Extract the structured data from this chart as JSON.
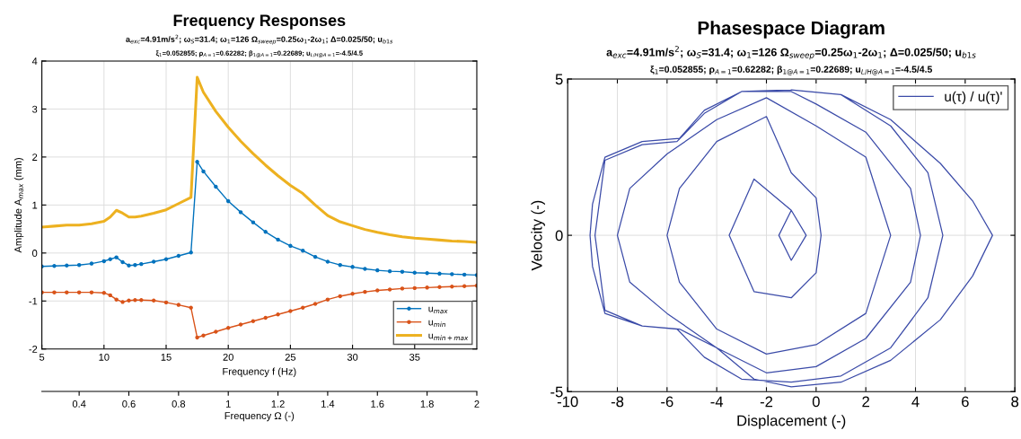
{
  "chart_data": [
    {
      "type": "line",
      "title": "Frequency Responses",
      "subtitle": "a$_{exc}$=4.91m/s$^{2}$; ω$_{S}$=31.4; ω$_{1}$=126 Ω$_{sweep}$=0.25ω$_{1}$-2ω$_{1}$; Δ=0.025/50; u$_{b1s}$",
      "annotations": [
        "ξ$_{1}$=0.052855; ρ$_{A=1}$=0.62282; β$_{1@A=1}$=0.22689; u$_{L/H@A=1}$=-4.5/4.5"
      ],
      "xlabel": "Frequency f (Hz)",
      "ylabel": "Amplitude A$_{max}$ (mm)",
      "x2label": "Frequency Ω (-)",
      "x": [
        5,
        6,
        7,
        8,
        9,
        10,
        10.5,
        11,
        11.5,
        12,
        12.5,
        13,
        14,
        15,
        16,
        17,
        17.5,
        18,
        19,
        20,
        21,
        22,
        23,
        24,
        25,
        26,
        27,
        28,
        29,
        30,
        31,
        32,
        33,
        34,
        35,
        36,
        37,
        38,
        39,
        40
      ],
      "series": [
        {
          "name": "u$_{max}$",
          "color": "#0072bd",
          "marker": "circle",
          "values": [
            -0.28,
            -0.27,
            -0.26,
            -0.25,
            -0.22,
            -0.17,
            -0.13,
            -0.09,
            -0.19,
            -0.26,
            -0.25,
            -0.23,
            -0.18,
            -0.13,
            -0.06,
            0.01,
            1.9,
            1.7,
            1.38,
            1.08,
            0.85,
            0.64,
            0.44,
            0.28,
            0.15,
            0.05,
            -0.08,
            -0.18,
            -0.25,
            -0.29,
            -0.33,
            -0.36,
            -0.38,
            -0.39,
            -0.41,
            -0.42,
            -0.43,
            -0.44,
            -0.45,
            -0.46
          ]
        },
        {
          "name": "u$_{min}$",
          "color": "#d95319",
          "marker": "circle",
          "values": [
            -0.82,
            -0.82,
            -0.82,
            -0.82,
            -0.82,
            -0.83,
            -0.88,
            -0.97,
            -1.02,
            -0.99,
            -0.98,
            -0.98,
            -0.99,
            -1.03,
            -1.08,
            -1.14,
            -1.76,
            -1.72,
            -1.64,
            -1.56,
            -1.49,
            -1.42,
            -1.35,
            -1.28,
            -1.21,
            -1.14,
            -1.06,
            -0.97,
            -0.9,
            -0.85,
            -0.81,
            -0.78,
            -0.76,
            -0.74,
            -0.73,
            -0.72,
            -0.71,
            -0.7,
            -0.69,
            -0.68
          ]
        },
        {
          "name": "u$_{min+max}$",
          "color": "#edb120",
          "marker": "none",
          "values": [
            0.54,
            0.56,
            0.58,
            0.58,
            0.61,
            0.66,
            0.75,
            0.89,
            0.83,
            0.75,
            0.75,
            0.77,
            0.83,
            0.9,
            1.03,
            1.16,
            3.66,
            3.35,
            2.95,
            2.62,
            2.33,
            2.07,
            1.83,
            1.61,
            1.41,
            1.24,
            1.0,
            0.78,
            0.65,
            0.57,
            0.49,
            0.43,
            0.38,
            0.34,
            0.31,
            0.29,
            0.27,
            0.25,
            0.24,
            0.22
          ]
        }
      ],
      "xlim": [
        5,
        40
      ],
      "xticks": [
        5,
        10,
        15,
        20,
        25,
        30,
        35
      ],
      "ylim": [
        -2,
        4
      ],
      "yticks": [
        -2,
        -1,
        0,
        1,
        2,
        3,
        4
      ],
      "x2lim": [
        0.25,
        2
      ],
      "x2ticks": [
        0.4,
        0.6,
        0.8,
        1,
        1.2,
        1.4,
        1.6,
        1.8,
        2
      ],
      "grid": true,
      "legend": "bottom right"
    },
    {
      "type": "line",
      "title": "Phasespace Diagram",
      "subtitle": "a$_{exc}$=4.91m/s$^{2}$; ω$_{S}$=31.4; ω$_{1}$=126 Ω$_{sweep}$=0.25ω$_{1}$-2ω$_{1}$; Δ=0.025/50; u$_{b1s}$",
      "annotations": [
        "ξ$_{1}$=0.052855; ρ$_{A=1}$=0.62282; β$_{1@A=1}$=0.22689; u$_{L/H@A=1}$=-4.5/4.5"
      ],
      "xlabel": "Displacement (-)",
      "ylabel": "Velocity (-)",
      "series": [
        {
          "name": "u(τ) / u(τ)'",
          "color": "#3b4ba8",
          "marker": "none",
          "x": [
            -1,
            1,
            3,
            5,
            6.3,
            7.1,
            6.3,
            5,
            3,
            1,
            -1,
            -2.5,
            -4,
            -5.5,
            -7,
            -8.5,
            -9,
            -9.1,
            -9,
            -8.5,
            -7,
            -5.5,
            -4.5,
            -3,
            -1,
            1,
            3,
            4.5,
            5.1,
            4.5,
            3,
            1,
            -1,
            -3,
            -4.5,
            -5.6,
            -7,
            -8.5,
            -8.9,
            -8.5,
            -7,
            -5.6,
            -4.5,
            -3,
            -1,
            0,
            2,
            3.8,
            4.2,
            3.8,
            2,
            0,
            -2,
            -4,
            -6,
            -7.5,
            -8,
            -7.5,
            -6,
            -4,
            -2,
            0,
            2,
            3,
            2,
            0,
            -2,
            -4,
            -5.5,
            -6,
            -5.5,
            -4,
            -2,
            -1,
            0,
            0.2,
            0,
            -1,
            -2.5,
            -3.5,
            -2.5,
            -1,
            -0.4,
            -1,
            -1.5,
            -1
          ],
          "values": [
            4.65,
            4.5,
            3.7,
            2.3,
            1.1,
            0,
            -1.3,
            -2.7,
            -4.0,
            -4.7,
            -4.85,
            -4.6,
            -3.6,
            -3.0,
            -2.9,
            -2.5,
            -1,
            0,
            1,
            2.5,
            3,
            3.1,
            4,
            4.6,
            4.65,
            4.5,
            3.5,
            2,
            0,
            -2,
            -3.6,
            -4.5,
            -4.7,
            -4.6,
            -3.9,
            -3,
            -2.9,
            -2.4,
            0,
            2.4,
            2.9,
            3,
            3.9,
            4.6,
            4.6,
            4.2,
            3.3,
            1.5,
            0,
            -1.5,
            -3.3,
            -4.2,
            -4.4,
            -3.6,
            -2.5,
            -1.5,
            0,
            1.5,
            2.6,
            3.7,
            4.4,
            3.5,
            2.5,
            0,
            -2.5,
            -3.5,
            -3.8,
            -3,
            -1.5,
            0,
            1.5,
            3,
            3.8,
            2,
            1.2,
            0,
            -1.2,
            -2,
            -1.8,
            0,
            1.8,
            0.8,
            0,
            -0.8,
            0,
            0.8
          ]
        }
      ],
      "xlim": [
        -10,
        8
      ],
      "xticks": [
        -10,
        -8,
        -6,
        -4,
        -2,
        0,
        2,
        4,
        6,
        8
      ],
      "ylim": [
        -5,
        5
      ],
      "yticks": [
        -5,
        0,
        5
      ],
      "grid": true,
      "legend": "top right"
    }
  ]
}
